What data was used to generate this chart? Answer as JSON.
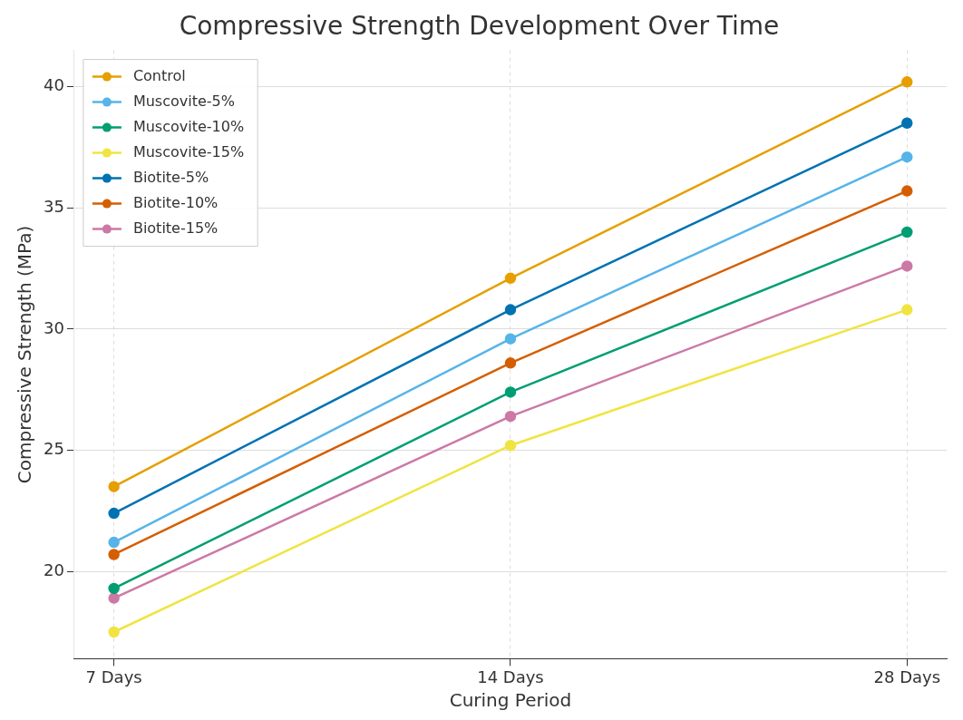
{
  "chart_data": {
    "type": "line",
    "title": "Compressive Strength Development Over Time",
    "xlabel": "Curing Period",
    "ylabel": "Compressive Strength (MPa)",
    "categories": [
      "7 Days",
      "14 Days",
      "28 Days"
    ],
    "series": [
      {
        "name": "Control",
        "color": "#e69f00",
        "values": [
          23.5,
          32.1,
          40.2
        ]
      },
      {
        "name": "Muscovite-5%",
        "color": "#56b4e9",
        "values": [
          21.2,
          29.6,
          37.1
        ]
      },
      {
        "name": "Muscovite-10%",
        "color": "#009e73",
        "values": [
          19.3,
          27.4,
          34.0
        ]
      },
      {
        "name": "Muscovite-15%",
        "color": "#f0e442",
        "values": [
          17.5,
          25.2,
          30.8
        ]
      },
      {
        "name": "Biotite-5%",
        "color": "#0072b2",
        "values": [
          22.4,
          30.8,
          38.5
        ]
      },
      {
        "name": "Biotite-10%",
        "color": "#d55e00",
        "values": [
          20.7,
          28.6,
          35.7
        ]
      },
      {
        "name": "Biotite-15%",
        "color": "#cc79a7",
        "values": [
          18.9,
          26.4,
          32.6
        ]
      }
    ],
    "ylim": [
      16.4,
      41.5
    ],
    "yticks": [
      20,
      25,
      30,
      35,
      40
    ],
    "grid": true,
    "legend": "top left",
    "marker": "circle",
    "line_style": "solid"
  }
}
